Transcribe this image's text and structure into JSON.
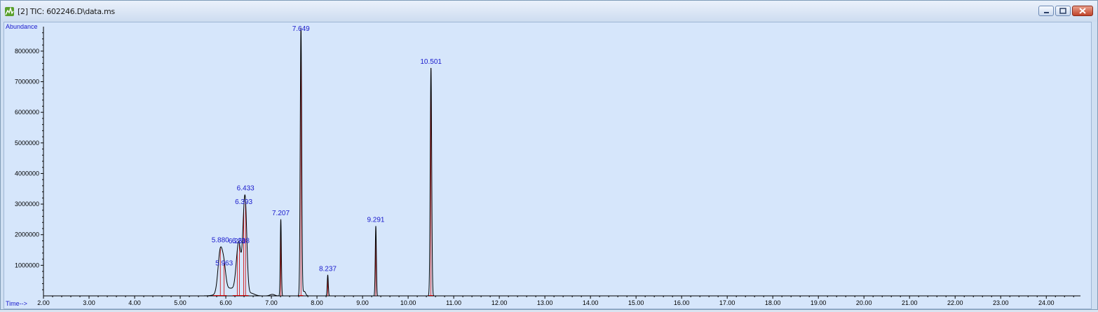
{
  "window": {
    "title": "[2] TIC: 602246.D\\data.ms",
    "icon": "chromatogram-app-icon",
    "buttons": [
      "minimize-icon",
      "maximize-icon",
      "close-icon"
    ]
  },
  "colors": {
    "trace": "#000000",
    "peak_label": "#1a1acc",
    "integration": "#cc0000",
    "axis_label": "#1a1acc",
    "plot_bg": "#d6e6fb"
  },
  "chart_data": {
    "type": "line",
    "title": "",
    "ylabel": "Abundance",
    "xlabel": "Time-->",
    "xlim": [
      2.0,
      24.75
    ],
    "ylim": [
      0,
      8800000
    ],
    "x_ticks": [
      "2.00",
      "3.00",
      "4.00",
      "5.00",
      "6.00",
      "7.00",
      "8.00",
      "9.00",
      "10.00",
      "11.00",
      "12.00",
      "13.00",
      "14.00",
      "15.00",
      "16.00",
      "17.00",
      "18.00",
      "19.00",
      "20.00",
      "21.00",
      "22.00",
      "23.00",
      "24.00"
    ],
    "y_ticks": [
      "1000000",
      "2000000",
      "3000000",
      "4000000",
      "5000000",
      "6000000",
      "7000000",
      "8000000"
    ],
    "grid": false,
    "peaks": [
      {
        "label": "5.880",
        "x": 5.88,
        "y": 1380000,
        "w": 0.05
      },
      {
        "label": "5.963",
        "x": 5.963,
        "y": 650000,
        "w": 0.04
      },
      {
        "label": "6.251",
        "x": 6.251,
        "y": 880000,
        "w": 0.04
      },
      {
        "label": "6.298",
        "x": 6.298,
        "y": 1050000,
        "w": 0.035
      },
      {
        "label": "6.393",
        "x": 6.393,
        "y": 1650000,
        "w": 0.04
      },
      {
        "label": "6.433",
        "x": 6.433,
        "y": 2050000,
        "w": 0.035
      },
      {
        "label": "7.207",
        "x": 7.207,
        "y": 2500000,
        "w": 0.012
      },
      {
        "label": "7.649",
        "x": 7.649,
        "y": 8750000,
        "w": 0.016
      },
      {
        "label": "8.237",
        "x": 8.237,
        "y": 680000,
        "w": 0.012
      },
      {
        "label": "9.291",
        "x": 9.291,
        "y": 2280000,
        "w": 0.012
      },
      {
        "label": "10.501",
        "x": 10.501,
        "y": 7450000,
        "w": 0.016
      }
    ]
  }
}
